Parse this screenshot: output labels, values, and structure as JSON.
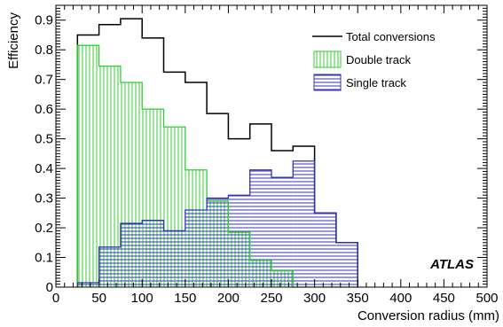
{
  "chart_data": {
    "type": "histogram",
    "xlabel": "Conversion radius (mm)",
    "ylabel": "Efficiency",
    "xlim": [
      0,
      500
    ],
    "ylim": [
      0,
      0.95
    ],
    "grid": false,
    "legend_position": "top-right",
    "x_ticks": [
      "0",
      "50",
      "100",
      "150",
      "200",
      "250",
      "300",
      "350",
      "400",
      "450",
      "500"
    ],
    "y_ticks": [
      "0",
      "0.1",
      "0.2",
      "0.3",
      "0.4",
      "0.5",
      "0.6",
      "0.7",
      "0.8",
      "0.9"
    ],
    "x_tick_values": [
      0,
      50,
      100,
      150,
      200,
      250,
      300,
      350,
      400,
      450,
      500
    ],
    "y_tick_values": [
      0,
      0.1,
      0.2,
      0.3,
      0.4,
      0.5,
      0.6,
      0.7,
      0.8,
      0.9
    ],
    "bin_edges": [
      25,
      50,
      75,
      100,
      125,
      150,
      175,
      200,
      225,
      250,
      275,
      300,
      325,
      350
    ],
    "series": [
      {
        "name": "Total conversions",
        "style": "line",
        "color": "#000000",
        "values": [
          0.85,
          0.885,
          0.905,
          0.84,
          0.725,
          0.69,
          0.585,
          0.5,
          0.55,
          0.46,
          0.475,
          0.25,
          0.15
        ]
      },
      {
        "name": "Double track",
        "style": "vertical-hatch",
        "color": "#33cc33",
        "values": [
          0.815,
          0.745,
          0.69,
          0.6,
          0.54,
          0.395,
          0.29,
          0.185,
          0.09,
          0.055,
          0.0,
          0.0,
          0.0
        ]
      },
      {
        "name": "Single track",
        "style": "horizontal-hatch",
        "color": "#3333bb",
        "values": [
          0.015,
          0.135,
          0.215,
          0.225,
          0.19,
          0.26,
          0.3,
          0.31,
          0.395,
          0.37,
          0.425,
          0.25,
          0.15
        ]
      }
    ],
    "annotation": "ATLAS"
  }
}
